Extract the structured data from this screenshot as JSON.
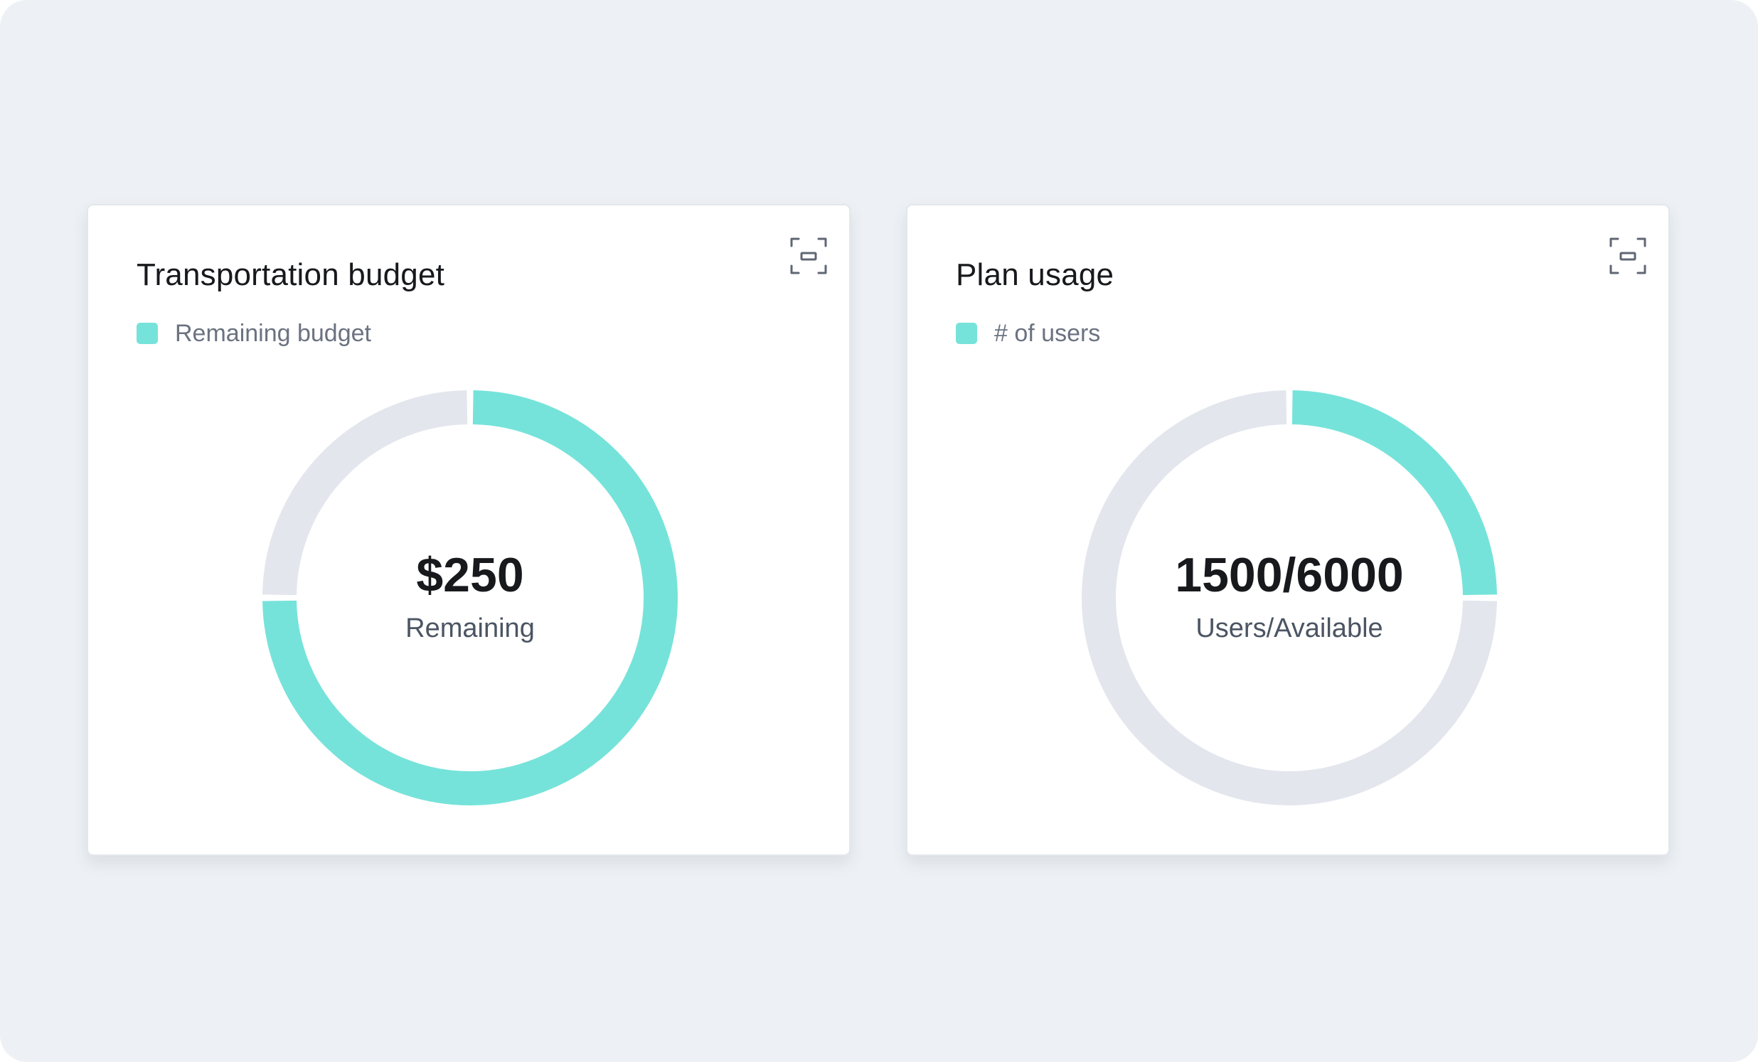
{
  "colors": {
    "accent": "#76e3da",
    "track": "#e3e6ed",
    "background": "#edf1f5",
    "card": "#ffffff",
    "title": "#17191c",
    "muted": "#6b7280"
  },
  "cards": [
    {
      "title": "Transportation budget",
      "legend_label": "Remaining budget",
      "center_value": "$250",
      "center_caption": "Remaining",
      "expand_icon": "expand-icon",
      "chart_data": {
        "type": "pie",
        "variant": "donut",
        "start": "top",
        "direction": "clockwise",
        "filled_fraction": 0.75,
        "series": [
          {
            "name": "Remaining budget",
            "value": 0.75,
            "color": "#76e3da"
          }
        ]
      }
    },
    {
      "title": "Plan usage",
      "legend_label": "# of users",
      "center_value": "1500/6000",
      "center_caption": "Users/Available",
      "expand_icon": "expand-icon",
      "chart_data": {
        "type": "pie",
        "variant": "donut",
        "start": "top",
        "direction": "clockwise",
        "filled_fraction": 0.25,
        "series": [
          {
            "name": "# of users",
            "value": 1500,
            "total": 6000,
            "color": "#76e3da"
          }
        ]
      }
    }
  ]
}
